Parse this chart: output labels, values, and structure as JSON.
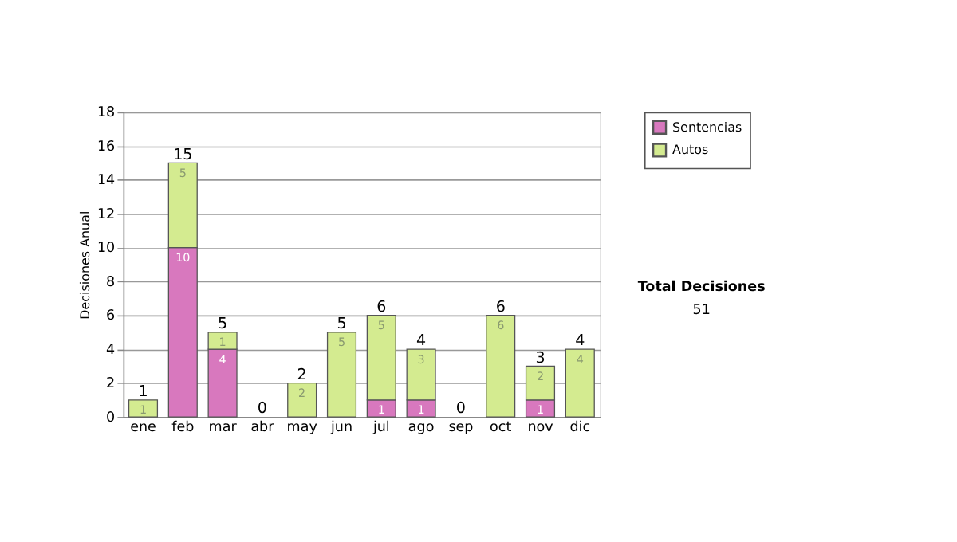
{
  "chart_data": {
    "type": "bar",
    "stacked": true,
    "ylabel": "Decisiones Anual",
    "categories": [
      "ene",
      "feb",
      "mar",
      "abr",
      "may",
      "jun",
      "jul",
      "ago",
      "sep",
      "oct",
      "nov",
      "dic"
    ],
    "series": [
      {
        "name": "Sentencias",
        "color": "#d878be",
        "values": [
          0,
          10,
          4,
          0,
          0,
          0,
          1,
          1,
          0,
          0,
          1,
          0
        ],
        "value_labels": [
          null,
          "10",
          "4",
          null,
          null,
          null,
          "1",
          "1",
          null,
          null,
          "1",
          null
        ]
      },
      {
        "name": "Autos",
        "color": "#d4eb90",
        "values": [
          1,
          5,
          1,
          0,
          2,
          5,
          5,
          3,
          0,
          6,
          2,
          4
        ],
        "value_labels": [
          "1",
          "5",
          "1",
          null,
          "2",
          "5",
          "5",
          "3",
          null,
          "6",
          "2",
          "4"
        ]
      }
    ],
    "totals": [
      "1",
      "15",
      "5",
      "0",
      "2",
      "5",
      "6",
      "4",
      "0",
      "6",
      "3",
      "4"
    ],
    "ylim": [
      0,
      18
    ],
    "yticks": [
      0,
      2,
      4,
      6,
      8,
      10,
      12,
      14,
      16,
      18
    ],
    "grid": "y",
    "legend": "right",
    "annotations": [
      "Total Decisiones",
      "51"
    ]
  }
}
